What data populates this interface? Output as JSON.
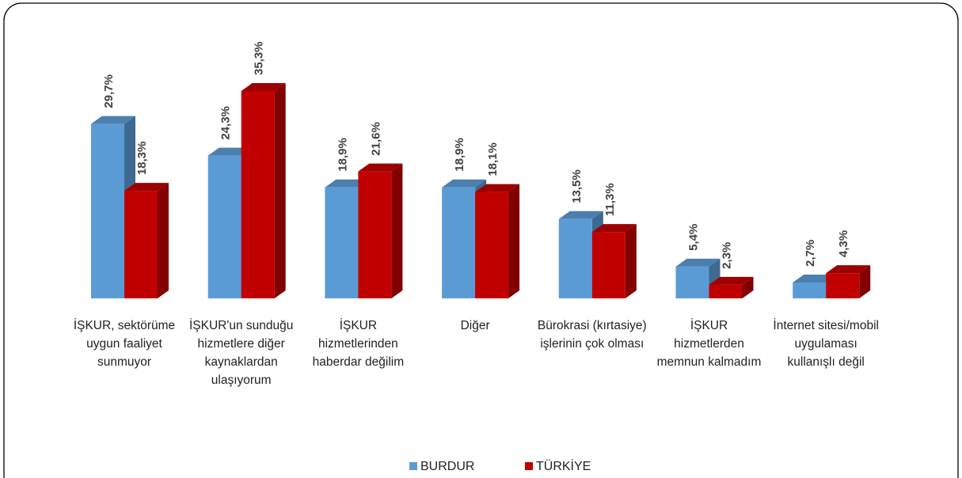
{
  "chart_data": {
    "type": "bar3d",
    "categories": [
      "İŞKUR, sektörüme uygun faaliyet sunmuyor",
      "İŞKUR'un sunduğu hizmetlere diğer kaynaklardan ulaşıyorum",
      "İŞKUR hizmetlerinden haberdar değilim",
      "Diğer",
      "Bürokrasi (kırtasiye) işlerinin çok olması",
      "İŞKUR hizmetlerden memnun kalmadım",
      "İnternet sitesi/mobil uygulaması kullanışlı değil"
    ],
    "series": [
      {
        "name": "BURDUR",
        "color": "#5b9bd5",
        "values": [
          29.7,
          24.3,
          18.9,
          18.9,
          13.5,
          5.4,
          2.7
        ],
        "value_labels": [
          "29,7%",
          "24,3%",
          "18,9%",
          "18,9%",
          "13,5%",
          "5,4%",
          "2,7%"
        ]
      },
      {
        "name": "TÜRKİYE",
        "color": "#c00000",
        "values": [
          18.3,
          35.3,
          21.6,
          18.1,
          11.3,
          2.3,
          4.3
        ],
        "value_labels": [
          "18,3%",
          "35,3%",
          "21,6%",
          "18,1%",
          "11,3%",
          "2,3%",
          "4,3%"
        ]
      }
    ],
    "legend": "bottom"
  }
}
